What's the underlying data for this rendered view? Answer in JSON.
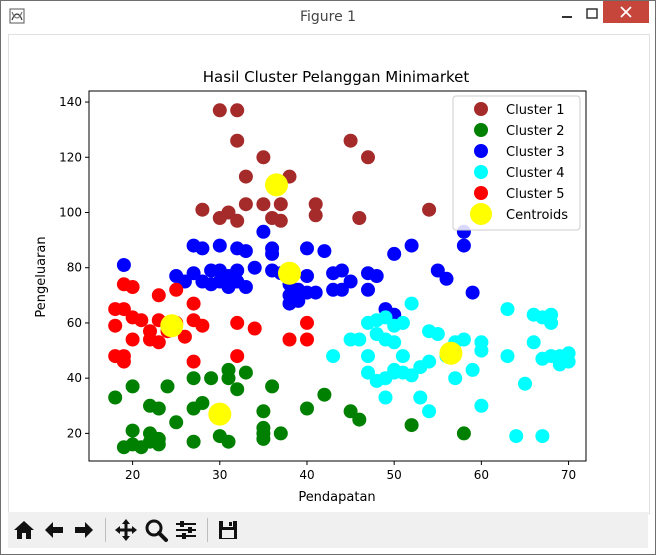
{
  "window": {
    "title": "Figure 1"
  },
  "toolbar": {
    "buttons": [
      "home-icon",
      "back-arrow-icon",
      "forward-arrow-icon",
      "pan-icon",
      "zoom-icon",
      "configure-subplots-icon",
      "save-icon"
    ]
  },
  "chart_data": {
    "type": "scatter",
    "title": "Hasil Cluster Pelanggan  Minimarket",
    "xlabel": "Pendapatan",
    "ylabel": "Pengeluaran",
    "xlim": [
      15,
      72
    ],
    "ylim": [
      10,
      144
    ],
    "xticks": [
      20,
      30,
      40,
      50,
      60,
      70
    ],
    "yticks": [
      20,
      40,
      60,
      80,
      100,
      120,
      140
    ],
    "legend_position": "top-right",
    "grid": false,
    "series": [
      {
        "name": "Cluster 1",
        "color": "#a52a2a",
        "points": [
          [
            30,
            137
          ],
          [
            32,
            137
          ],
          [
            32,
            126
          ],
          [
            45,
            126
          ],
          [
            35,
            120
          ],
          [
            47,
            120
          ],
          [
            33,
            113
          ],
          [
            38,
            113
          ],
          [
            28,
            101
          ],
          [
            30,
            98
          ],
          [
            31,
            100
          ],
          [
            33,
            103
          ],
          [
            35,
            103
          ],
          [
            37,
            103
          ],
          [
            32,
            97
          ],
          [
            36,
            98
          ],
          [
            37,
            97
          ],
          [
            41,
            103
          ],
          [
            41,
            99
          ],
          [
            46,
            98
          ],
          [
            54,
            101
          ]
        ]
      },
      {
        "name": "Cluster 2",
        "color": "#008000",
        "points": [
          [
            18,
            33
          ],
          [
            19,
            15
          ],
          [
            20,
            37
          ],
          [
            20,
            21
          ],
          [
            20,
            16
          ],
          [
            21,
            15
          ],
          [
            22,
            20
          ],
          [
            22,
            30
          ],
          [
            22,
            17
          ],
          [
            23,
            29
          ],
          [
            23,
            16
          ],
          [
            23,
            18
          ],
          [
            24,
            37
          ],
          [
            25,
            24
          ],
          [
            27,
            40
          ],
          [
            27,
            29
          ],
          [
            27,
            17
          ],
          [
            28,
            31
          ],
          [
            29,
            40
          ],
          [
            30,
            19
          ],
          [
            30,
            28
          ],
          [
            31,
            43
          ],
          [
            31,
            40
          ],
          [
            31,
            17
          ],
          [
            32,
            36
          ],
          [
            33,
            42
          ],
          [
            35,
            28
          ],
          [
            35,
            22
          ],
          [
            35,
            20
          ],
          [
            35,
            18
          ],
          [
            36,
            37
          ],
          [
            37,
            20
          ],
          [
            40,
            29
          ],
          [
            42,
            34
          ],
          [
            45,
            28
          ],
          [
            46,
            25
          ],
          [
            52,
            23
          ],
          [
            58,
            20
          ]
        ]
      },
      {
        "name": "Cluster 3",
        "color": "#0000ff",
        "points": [
          [
            19,
            81
          ],
          [
            25,
            77
          ],
          [
            26,
            75
          ],
          [
            27,
            88
          ],
          [
            27,
            78
          ],
          [
            28,
            87
          ],
          [
            28,
            75
          ],
          [
            29,
            79
          ],
          [
            29,
            74
          ],
          [
            30,
            88
          ],
          [
            30,
            79
          ],
          [
            30,
            75
          ],
          [
            31,
            77
          ],
          [
            31,
            73
          ],
          [
            32,
            87
          ],
          [
            32,
            79
          ],
          [
            32,
            75
          ],
          [
            33,
            86
          ],
          [
            33,
            73
          ],
          [
            34,
            80
          ],
          [
            35,
            93
          ],
          [
            36,
            87
          ],
          [
            36,
            85
          ],
          [
            36,
            79
          ],
          [
            37,
            78
          ],
          [
            38,
            79
          ],
          [
            38,
            74
          ],
          [
            38,
            70
          ],
          [
            38,
            67
          ],
          [
            39,
            72
          ],
          [
            39,
            68
          ],
          [
            40,
            87
          ],
          [
            40,
            77
          ],
          [
            40,
            71
          ],
          [
            41,
            71
          ],
          [
            42,
            86
          ],
          [
            43,
            78
          ],
          [
            43,
            72
          ],
          [
            44,
            72
          ],
          [
            44,
            79
          ],
          [
            45,
            75
          ],
          [
            47,
            78
          ],
          [
            47,
            72
          ],
          [
            48,
            77
          ],
          [
            49,
            65
          ],
          [
            50,
            85
          ],
          [
            50,
            63
          ],
          [
            52,
            88
          ],
          [
            55,
            79
          ],
          [
            56,
            76
          ],
          [
            58,
            88
          ],
          [
            58,
            93
          ],
          [
            59,
            71
          ]
        ]
      },
      {
        "name": "Cluster 4",
        "color": "#00ffff",
        "points": [
          [
            43,
            48
          ],
          [
            45,
            54
          ],
          [
            46,
            54
          ],
          [
            47,
            60
          ],
          [
            47,
            48
          ],
          [
            47,
            42
          ],
          [
            48,
            61
          ],
          [
            48,
            56
          ],
          [
            48,
            39
          ],
          [
            49,
            62
          ],
          [
            49,
            54
          ],
          [
            49,
            40
          ],
          [
            49,
            33
          ],
          [
            50,
            59
          ],
          [
            50,
            53
          ],
          [
            50,
            43
          ],
          [
            50,
            42
          ],
          [
            51,
            60
          ],
          [
            51,
            48
          ],
          [
            51,
            42
          ],
          [
            52,
            67
          ],
          [
            52,
            41
          ],
          [
            53,
            44
          ],
          [
            53,
            33
          ],
          [
            54,
            57
          ],
          [
            54,
            46
          ],
          [
            54,
            28
          ],
          [
            55,
            56
          ],
          [
            56,
            48
          ],
          [
            57,
            53
          ],
          [
            58,
            54
          ],
          [
            59,
            43
          ],
          [
            60,
            53
          ],
          [
            60,
            50
          ],
          [
            60,
            30
          ],
          [
            63,
            65
          ],
          [
            63,
            48
          ],
          [
            64,
            19
          ],
          [
            65,
            38
          ],
          [
            66,
            63
          ],
          [
            67,
            62
          ],
          [
            67,
            47
          ],
          [
            67,
            19
          ],
          [
            68,
            63
          ],
          [
            68,
            60
          ],
          [
            68,
            48
          ],
          [
            69,
            45
          ],
          [
            70,
            46
          ],
          [
            70,
            49
          ],
          [
            69,
            48
          ],
          [
            66,
            53
          ],
          [
            57,
            40
          ]
        ]
      },
      {
        "name": "Cluster 5",
        "color": "#ff0000",
        "points": [
          [
            18,
            65
          ],
          [
            18,
            59
          ],
          [
            18,
            48
          ],
          [
            19,
            74
          ],
          [
            19,
            65
          ],
          [
            19,
            48
          ],
          [
            19,
            46
          ],
          [
            20,
            73
          ],
          [
            20,
            62
          ],
          [
            20,
            54
          ],
          [
            21,
            61
          ],
          [
            22,
            54
          ],
          [
            22,
            57
          ],
          [
            23,
            70
          ],
          [
            23,
            61
          ],
          [
            23,
            53
          ],
          [
            24,
            57
          ],
          [
            25,
            60
          ],
          [
            25,
            72
          ],
          [
            26,
            55
          ],
          [
            27,
            67
          ],
          [
            27,
            61
          ],
          [
            27,
            46
          ],
          [
            28,
            59
          ],
          [
            32,
            60
          ],
          [
            32,
            48
          ],
          [
            34,
            58
          ],
          [
            38,
            54
          ],
          [
            40,
            60
          ],
          [
            40,
            54
          ]
        ]
      },
      {
        "name": "Centroids",
        "color": "#ffff00",
        "points": [
          [
            36.5,
            110
          ],
          [
            24.5,
            59
          ],
          [
            38,
            78
          ],
          [
            30,
            27
          ],
          [
            56.5,
            49
          ]
        ]
      }
    ]
  }
}
